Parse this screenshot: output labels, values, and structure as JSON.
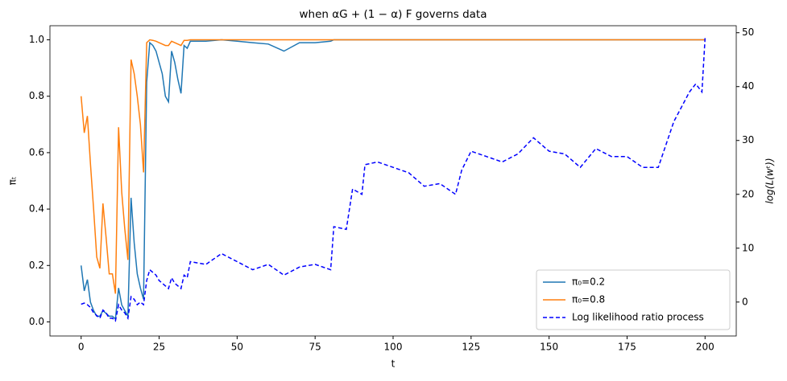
{
  "chart_data": {
    "type": "line",
    "title": "when αG + (1 − α) F governs data",
    "xlabel": "t",
    "ylabel": "πₜ",
    "y2label": "log(L(wᵗ))",
    "x": [
      0,
      1,
      2,
      3,
      4,
      5,
      6,
      7,
      8,
      9,
      10,
      11,
      12,
      13,
      14,
      15,
      16,
      17,
      18,
      19,
      20,
      21,
      22,
      23,
      24,
      25,
      26,
      27,
      28,
      29,
      30,
      31,
      32,
      33,
      34,
      35,
      40,
      45,
      50,
      55,
      60,
      65,
      70,
      75,
      80,
      81,
      85,
      87,
      90,
      91,
      95,
      100,
      105,
      110,
      115,
      120,
      122,
      125,
      130,
      135,
      140,
      145,
      150,
      155,
      160,
      165,
      170,
      175,
      180,
      185,
      190,
      195,
      197,
      199,
      200
    ],
    "series": [
      {
        "name": "π₀=0.2",
        "color": "#1f77b4",
        "dash": false,
        "values": [
          0.2,
          0.11,
          0.15,
          0.07,
          0.04,
          0.02,
          0.02,
          0.04,
          0.03,
          0.02,
          0.02,
          0.01,
          0.12,
          0.06,
          0.04,
          0.02,
          0.44,
          0.28,
          0.17,
          0.12,
          0.08,
          0.85,
          0.99,
          0.98,
          0.96,
          0.92,
          0.88,
          0.8,
          0.78,
          0.96,
          0.92,
          0.86,
          0.81,
          0.98,
          0.97,
          0.995,
          0.995,
          1,
          0.995,
          0.99,
          0.985,
          0.96,
          0.99,
          0.99,
          0.995,
          1,
          1,
          1,
          1,
          1,
          1,
          1,
          1,
          1,
          1,
          1,
          1,
          1,
          1,
          1,
          1,
          1,
          1,
          1,
          1,
          1,
          1,
          1,
          1,
          1,
          1,
          1,
          1,
          1,
          1
        ]
      },
      {
        "name": "π₀=0.8",
        "color": "#ff7f0e",
        "dash": false,
        "values": [
          0.8,
          0.67,
          0.73,
          0.56,
          0.4,
          0.23,
          0.19,
          0.42,
          0.3,
          0.17,
          0.17,
          0.1,
          0.69,
          0.46,
          0.33,
          0.22,
          0.93,
          0.88,
          0.8,
          0.7,
          0.53,
          0.99,
          1,
          0.998,
          0.995,
          0.99,
          0.985,
          0.98,
          0.98,
          0.995,
          0.99,
          0.985,
          0.98,
          0.998,
          0.998,
          1,
          1,
          1,
          1,
          1,
          1,
          1,
          1,
          1,
          1,
          1,
          1,
          1,
          1,
          1,
          1,
          1,
          1,
          1,
          1,
          1,
          1,
          1,
          1,
          1,
          1,
          1,
          1,
          1,
          1,
          1,
          1,
          1,
          1,
          1,
          1,
          1,
          1,
          1,
          1
        ]
      },
      {
        "name": "Log likelihood ratio process",
        "color": "#0000ff",
        "dash": true,
        "axis": "y2",
        "values": [
          -0.4,
          -0.2,
          -0.5,
          -1,
          -2,
          -2.5,
          -3,
          -1.5,
          -2,
          -3,
          -3,
          -3.5,
          -0.5,
          -1.5,
          -2,
          -3,
          1,
          0.5,
          -0.5,
          0,
          -0.5,
          4,
          6,
          5.5,
          5,
          4,
          3.5,
          3,
          2.5,
          4.5,
          3.5,
          3,
          2.5,
          5,
          4.5,
          7.5,
          7,
          9,
          7.5,
          6,
          7,
          5,
          6.5,
          7,
          6,
          14,
          13.5,
          21,
          20,
          25.5,
          26,
          25,
          24,
          21.5,
          22,
          20,
          24.5,
          28,
          27,
          26,
          27.5,
          30.5,
          28,
          27.5,
          25,
          28.5,
          27,
          27,
          25,
          25,
          33.5,
          39,
          40.5,
          39,
          49
        ]
      }
    ],
    "xlim": [
      -10,
      210
    ],
    "xticks": [
      0,
      25,
      50,
      75,
      100,
      125,
      150,
      175,
      200
    ],
    "ylim": [
      -0.05,
      1.05
    ],
    "yticks": [
      {
        "value": 0,
        "label": "0.0"
      },
      {
        "value": 0.2,
        "label": "0.2"
      },
      {
        "value": 0.4,
        "label": "0.4"
      },
      {
        "value": 0.6,
        "label": "0.6"
      },
      {
        "value": 0.8,
        "label": "0.8"
      },
      {
        "value": 1,
        "label": "1.0"
      }
    ],
    "y2lim": [
      -6.3,
      51.3
    ],
    "y2ticks": [
      0,
      10,
      20,
      30,
      40,
      50
    ],
    "grid": false,
    "legend": "lower right"
  }
}
